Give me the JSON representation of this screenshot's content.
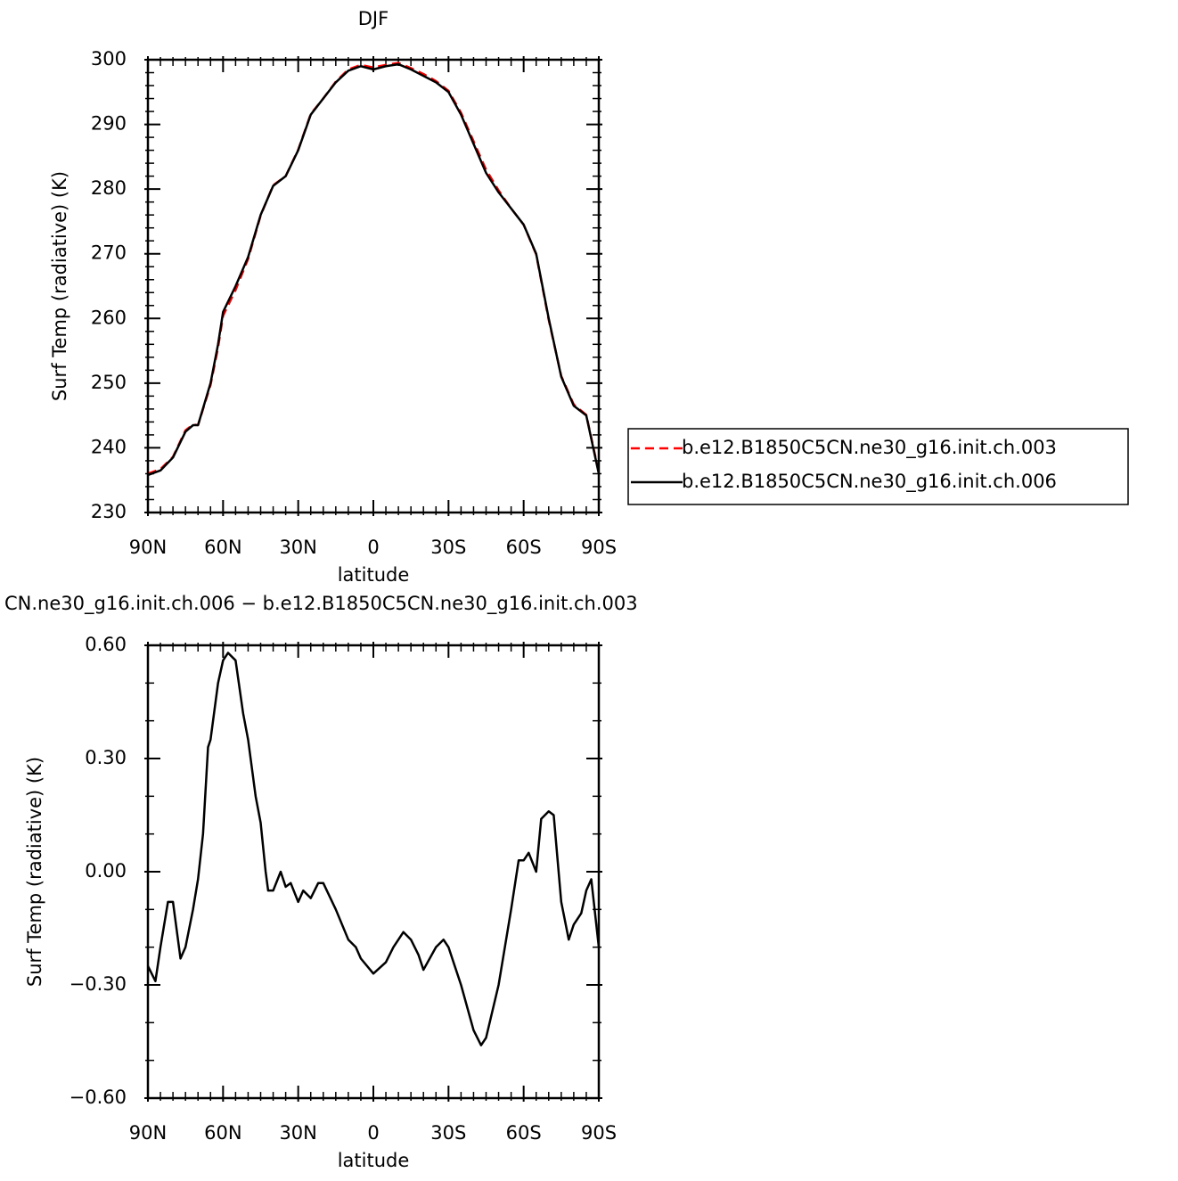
{
  "chart_data": [
    {
      "type": "line",
      "title": "DJF",
      "xlabel": "latitude",
      "ylabel": "Surf Temp (radiative) (K)",
      "x": [
        90,
        85,
        80,
        75,
        72,
        70,
        65,
        62,
        60,
        55,
        50,
        45,
        40,
        35,
        30,
        25,
        20,
        15,
        10,
        5,
        0,
        -5,
        -10,
        -15,
        -20,
        -25,
        -30,
        -35,
        -40,
        -45,
        -50,
        -55,
        -60,
        -65,
        -70,
        -75,
        -80,
        -85,
        -90
      ],
      "series": [
        {
          "name": "b.e12.B1850C5CN.ne30_g16.init.ch.003",
          "color": "#ff0000",
          "dash": true,
          "values": [
            236.0,
            236.7,
            238.6,
            242.7,
            243.6,
            243.5,
            249.7,
            255.5,
            260.4,
            264.4,
            269.2,
            275.9,
            280.6,
            282.0,
            286.1,
            291.6,
            294.0,
            296.6,
            298.5,
            299.2,
            298.8,
            299.2,
            299.5,
            298.7,
            297.8,
            296.7,
            295.2,
            291.8,
            287.4,
            283.0,
            279.8,
            277.0,
            274.5,
            269.9,
            259.8,
            251.1,
            246.7,
            245.1,
            236.2
          ]
        },
        {
          "name": "b.e12.B1850C5CN.ne30_g16.init.ch.006",
          "color": "#000000",
          "dash": false,
          "values": [
            235.8,
            236.5,
            238.5,
            242.5,
            243.5,
            243.5,
            250.0,
            256.0,
            261.0,
            265.0,
            269.5,
            276.0,
            280.5,
            282.0,
            286.0,
            291.5,
            294.0,
            296.5,
            298.3,
            299.0,
            298.5,
            299.0,
            299.3,
            298.5,
            297.5,
            296.5,
            295.0,
            291.5,
            287.0,
            282.5,
            279.5,
            277.0,
            274.5,
            270.0,
            260.0,
            251.0,
            246.5,
            245.0,
            236.0
          ]
        }
      ],
      "xlim": [
        90,
        -90
      ],
      "xticks": [
        {
          "value": 90,
          "label": "90N"
        },
        {
          "value": 60,
          "label": "60N"
        },
        {
          "value": 30,
          "label": "30N"
        },
        0,
        {
          "value": -30,
          "label": "30S"
        },
        {
          "value": -60,
          "label": "60S"
        },
        {
          "value": -90,
          "label": "90S"
        }
      ],
      "ylim": [
        230,
        300
      ],
      "yticks": [
        230,
        240,
        250,
        260,
        270,
        280,
        290,
        300
      ]
    },
    {
      "type": "line",
      "title": "CN.ne30_g16.init.ch.006 − b.e12.B1850C5CN.ne30_g16.init.ch.003",
      "xlabel": "latitude",
      "ylabel": "Surf Temp (radiative) (K)",
      "x": [
        90,
        87,
        85,
        82,
        80,
        77,
        75,
        72,
        70,
        68,
        66,
        65,
        62,
        60,
        58,
        55,
        52,
        50,
        47,
        45,
        43,
        42,
        40,
        37,
        35,
        33,
        30,
        28,
        25,
        22,
        20,
        15,
        10,
        7,
        5,
        0,
        -5,
        -8,
        -12,
        -15,
        -18,
        -20,
        -25,
        -28,
        -30,
        -35,
        -40,
        -43,
        -45,
        -50,
        -55,
        -58,
        -60,
        -62,
        -65,
        -67,
        -70,
        -72,
        -75,
        -78,
        -80,
        -83,
        -85,
        -87,
        -90
      ],
      "series": [
        {
          "color": "#000000",
          "dash": false,
          "values": [
            -0.25,
            -0.29,
            -0.2,
            -0.08,
            -0.08,
            -0.23,
            -0.2,
            -0.1,
            -0.02,
            0.1,
            0.33,
            0.35,
            0.5,
            0.56,
            0.58,
            0.56,
            0.42,
            0.35,
            0.2,
            0.13,
            0.0,
            -0.05,
            -0.05,
            0.0,
            -0.04,
            -0.03,
            -0.08,
            -0.05,
            -0.07,
            -0.03,
            -0.03,
            -0.1,
            -0.18,
            -0.2,
            -0.23,
            -0.27,
            -0.24,
            -0.2,
            -0.16,
            -0.18,
            -0.22,
            -0.26,
            -0.2,
            -0.18,
            -0.2,
            -0.3,
            -0.42,
            -0.46,
            -0.44,
            -0.3,
            -0.1,
            0.03,
            0.03,
            0.05,
            0.0,
            0.14,
            0.16,
            0.15,
            -0.08,
            -0.18,
            -0.14,
            -0.11,
            -0.05,
            -0.02,
            -0.2
          ]
        }
      ],
      "xlim": [
        90,
        -90
      ],
      "xticks": [
        {
          "value": 90,
          "label": "90N"
        },
        {
          "value": 60,
          "label": "60N"
        },
        {
          "value": 30,
          "label": "30N"
        },
        0,
        {
          "value": -30,
          "label": "30S"
        },
        {
          "value": -60,
          "label": "60S"
        },
        {
          "value": -90,
          "label": "90S"
        }
      ],
      "ylim": [
        -0.6,
        0.6
      ],
      "yticks": [
        {
          "value": -0.6,
          "label": "−0.60"
        },
        {
          "value": -0.3,
          "label": "−0.30"
        },
        {
          "value": 0,
          "label": "0.00"
        },
        {
          "value": 0.3,
          "label": "0.30"
        },
        {
          "value": 0.6,
          "label": "0.60"
        }
      ]
    }
  ]
}
